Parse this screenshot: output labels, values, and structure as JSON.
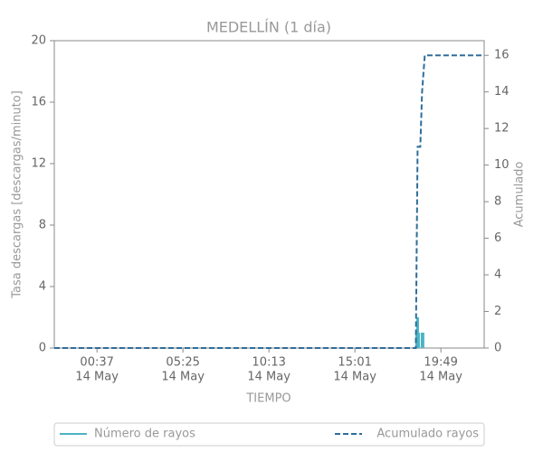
{
  "chart_data": {
    "type": "combo",
    "title": "MEDELLÍN (1 día)",
    "x_label": "TIEMPO",
    "y_label": "Tasa descargas [descargas/minuto]",
    "y2_label": "Acumulado",
    "xlim": [
      "13 May 22:14",
      "14 May 22:14"
    ],
    "xticks": [
      {
        "value": "14 May 00:37",
        "label": [
          "00:37",
          "14 May"
        ]
      },
      {
        "value": "14 May 05:25",
        "label": [
          "05:25",
          "14 May"
        ]
      },
      {
        "value": "14 May 10:13",
        "label": [
          "10:13",
          "14 May"
        ]
      },
      {
        "value": "14 May 15:01",
        "label": [
          "15:01",
          "14 May"
        ]
      },
      {
        "value": "14 May 19:49",
        "label": [
          "19:49",
          "14 May"
        ]
      }
    ],
    "ylim": [
      0,
      20
    ],
    "yticks": [
      0,
      4,
      8,
      12,
      16,
      20
    ],
    "y2lim": [
      0,
      16.8
    ],
    "y2ticks": [
      0,
      2,
      4,
      6,
      8,
      10,
      12,
      14,
      16
    ],
    "grid": false,
    "legend": "bottom",
    "series": [
      {
        "name": "Número de rayos",
        "type": "bar",
        "color": "#4cb3c4",
        "x": [
          "14 May 18:28",
          "14 May 18:31",
          "14 May 18:34",
          "14 May 18:46",
          "14 May 18:49"
        ],
        "values": [
          1,
          2,
          1,
          1,
          1
        ]
      },
      {
        "name": "Acumulado rayos",
        "type": "line",
        "axis": "y2",
        "color": "#2e6e9b",
        "linestyle": "dashed",
        "x": [
          "13 May 22:14",
          "14 May 18:25",
          "14 May 18:31",
          "14 May 18:40",
          "14 May 18:46",
          "14 May 18:55",
          "14 May 22:14"
        ],
        "values": [
          0,
          0,
          11,
          11,
          14,
          16,
          16
        ]
      }
    ]
  }
}
